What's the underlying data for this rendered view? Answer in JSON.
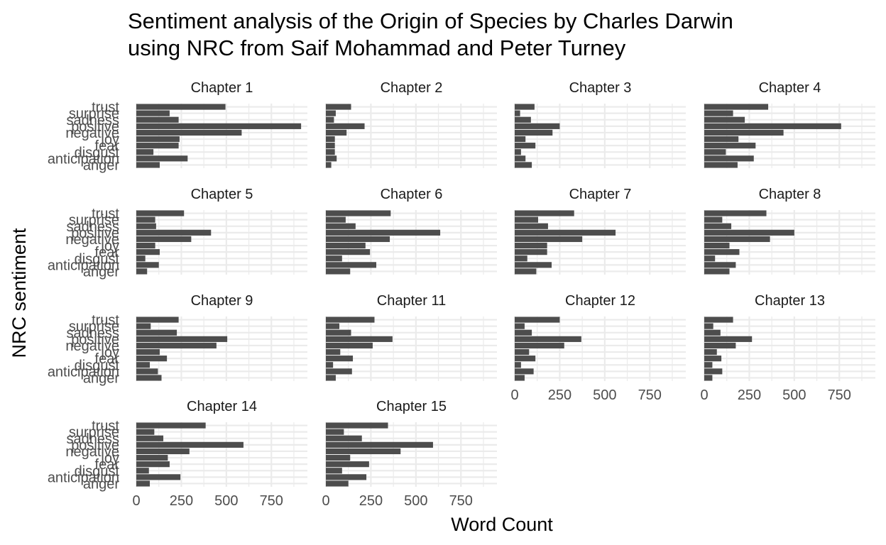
{
  "chart_data": {
    "type": "bar",
    "orientation": "horizontal",
    "facet": "wrap",
    "title": "Sentiment analysis of the Origin of Species by Charles Darwin using NRC from Saif Mohammad and Peter Turney",
    "title_lines": [
      "Sentiment analysis of the Origin of Species by Charles Darwin",
      "using NRC from Saif Mohammad and Peter Turney"
    ],
    "xlabel": "Word Count",
    "ylabel": "NRC sentiment",
    "xlim": [
      0,
      950
    ],
    "x_ticks": [
      0,
      250,
      500,
      750
    ],
    "x_tick_labels": [
      "0",
      "250",
      "500",
      "750"
    ],
    "grid": true,
    "bar_color": "#4d4d4d",
    "grid_color": "#ebebeb",
    "categories": [
      "anger",
      "anticipation",
      "disgust",
      "fear",
      "joy",
      "negative",
      "positive",
      "sadness",
      "surprise",
      "trust"
    ],
    "panels": [
      {
        "name": "Chapter 1",
        "values": [
          130,
          285,
          95,
          235,
          240,
          585,
          915,
          235,
          185,
          495
        ]
      },
      {
        "name": "Chapter 2",
        "values": [
          30,
          60,
          50,
          50,
          50,
          115,
          215,
          45,
          55,
          140
        ]
      },
      {
        "name": "Chapter 3",
        "values": [
          95,
          60,
          35,
          115,
          60,
          210,
          250,
          90,
          30,
          110
        ]
      },
      {
        "name": "Chapter 4",
        "values": [
          185,
          275,
          120,
          285,
          190,
          440,
          760,
          225,
          160,
          355
        ]
      },
      {
        "name": "Chapter 5",
        "values": [
          60,
          125,
          50,
          130,
          105,
          305,
          415,
          110,
          105,
          265
        ]
      },
      {
        "name": "Chapter 6",
        "values": [
          135,
          280,
          90,
          245,
          220,
          355,
          635,
          165,
          110,
          360
        ]
      },
      {
        "name": "Chapter 7",
        "values": [
          120,
          205,
          70,
          180,
          180,
          375,
          560,
          185,
          130,
          330
        ]
      },
      {
        "name": "Chapter 8",
        "values": [
          140,
          175,
          60,
          195,
          140,
          365,
          500,
          150,
          100,
          345
        ]
      },
      {
        "name": "Chapter 9",
        "values": [
          140,
          120,
          75,
          170,
          130,
          445,
          505,
          225,
          80,
          235
        ]
      },
      {
        "name": "Chapter 11",
        "values": [
          55,
          145,
          40,
          150,
          80,
          260,
          370,
          140,
          75,
          270
        ]
      },
      {
        "name": "Chapter 12",
        "values": [
          55,
          105,
          35,
          115,
          80,
          275,
          370,
          95,
          55,
          250
        ]
      },
      {
        "name": "Chapter 13",
        "values": [
          45,
          100,
          45,
          95,
          70,
          175,
          265,
          90,
          50,
          160
        ]
      },
      {
        "name": "Chapter 14",
        "values": [
          75,
          245,
          70,
          185,
          175,
          295,
          595,
          150,
          100,
          385
        ]
      },
      {
        "name": "Chapter 15",
        "values": [
          125,
          225,
          90,
          240,
          135,
          415,
          595,
          200,
          100,
          345
        ]
      }
    ]
  }
}
